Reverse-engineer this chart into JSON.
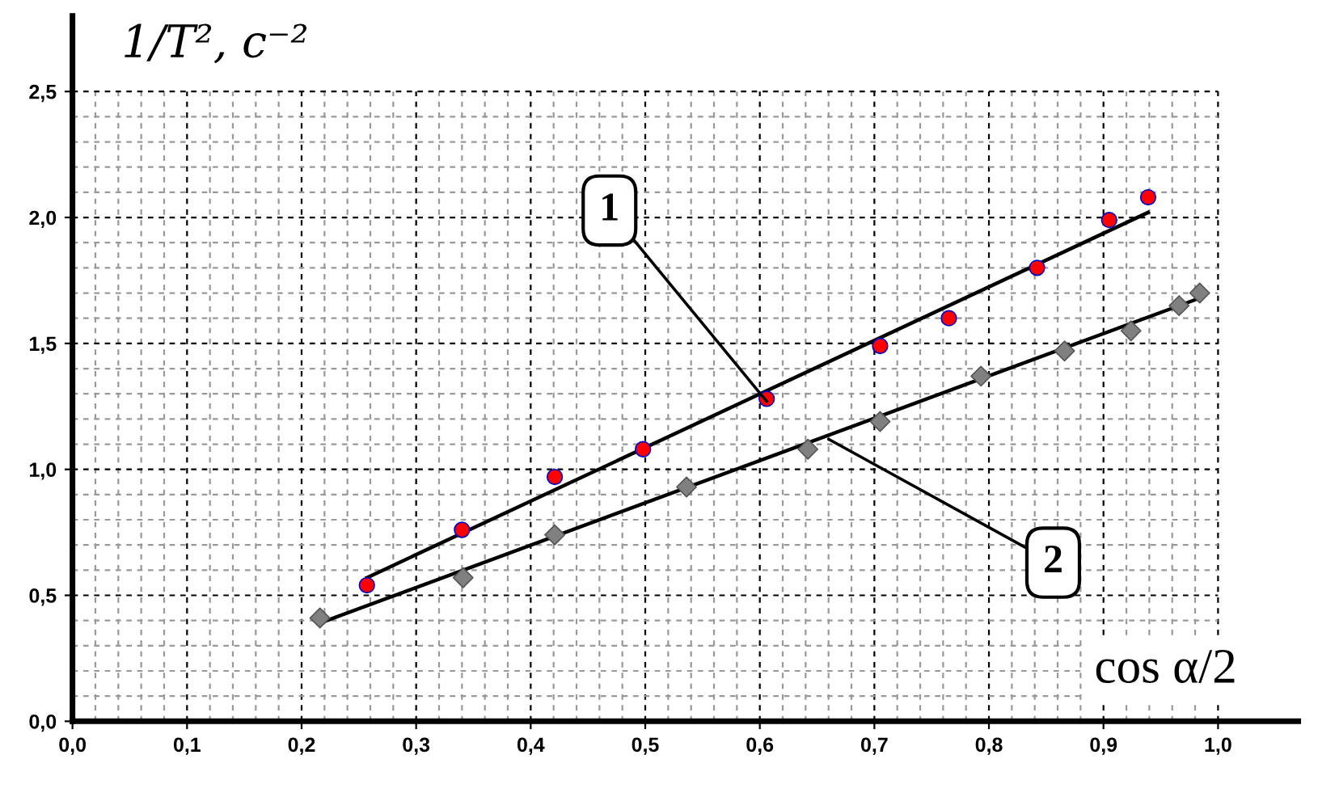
{
  "chart_data": {
    "type": "scatter",
    "xlabel": "cos α/2",
    "ylabel": "1/T², c⁻²",
    "xlim": [
      0,
      1.07
    ],
    "ylim": [
      0,
      2.8
    ],
    "xticks": [
      {
        "value": 0,
        "label": "0,0"
      },
      {
        "value": 0.1,
        "label": "0,1"
      },
      {
        "value": 0.2,
        "label": "0,2"
      },
      {
        "value": 0.3,
        "label": "0,3"
      },
      {
        "value": 0.4,
        "label": "0,4"
      },
      {
        "value": 0.5,
        "label": "0,5"
      },
      {
        "value": 0.6,
        "label": "0,6"
      },
      {
        "value": 0.7,
        "label": "0,7"
      },
      {
        "value": 0.8,
        "label": "0,8"
      },
      {
        "value": 0.9,
        "label": "0,9"
      },
      {
        "value": 1.0,
        "label": "1,0"
      }
    ],
    "yticks": [
      {
        "value": 0,
        "label": "0,0"
      },
      {
        "value": 0.5,
        "label": "0,5"
      },
      {
        "value": 1.0,
        "label": "1,0"
      },
      {
        "value": 1.5,
        "label": "1,5"
      },
      {
        "value": 2.0,
        "label": "2,0"
      },
      {
        "value": 2.5,
        "label": "2,5"
      }
    ],
    "grid": true,
    "series": [
      {
        "marker": "circle",
        "color": "#ff0000",
        "x": [
          0.257,
          0.34,
          0.421,
          0.498,
          0.606,
          0.705,
          0.765,
          0.842,
          0.905,
          0.939
        ],
        "values": [
          0.54,
          0.76,
          0.97,
          1.08,
          1.28,
          1.49,
          1.6,
          1.8,
          1.99,
          2.08
        ]
      },
      {
        "marker": "diamond",
        "color": "#808080",
        "x": [
          0.216,
          0.341,
          0.421,
          0.536,
          0.642,
          0.705,
          0.793,
          0.866,
          0.924,
          0.966,
          0.984
        ],
        "values": [
          0.41,
          0.57,
          0.74,
          0.93,
          1.08,
          1.19,
          1.37,
          1.47,
          1.55,
          1.65,
          1.7
        ]
      },
      {
        "type": "line",
        "color": "#000000",
        "x": [
          0.257,
          0.939
        ],
        "values": [
          0.57,
          2.02
        ]
      },
      {
        "type": "line",
        "color": "#000000",
        "x": [
          0.216,
          0.984
        ],
        "values": [
          0.39,
          1.68
        ]
      }
    ],
    "annotations": [
      {
        "text": "1",
        "x": 0.606,
        "y": 1.27
      },
      {
        "text": "2",
        "x": 0.66,
        "y": 1.12
      }
    ]
  }
}
